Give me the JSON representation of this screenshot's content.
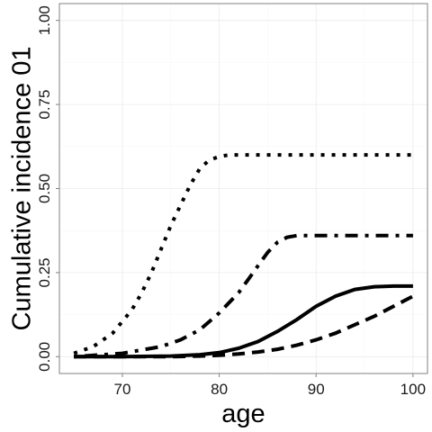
{
  "chart_data": {
    "type": "line",
    "title": "",
    "xlabel": "age",
    "ylabel": "Cumulative incidence 01",
    "xlim": [
      63.5,
      101.5
    ],
    "ylim": [
      -0.05,
      1.05
    ],
    "x_ticks": [
      70,
      80,
      90,
      100
    ],
    "y_ticks": [
      0.0,
      0.25,
      0.5,
      0.75,
      1.0
    ],
    "x_tick_labels": [
      "70",
      "80",
      "90",
      "100"
    ],
    "y_tick_labels": [
      "0.00",
      "0.25",
      "0.50",
      "0.75",
      "1.00"
    ],
    "grid": true,
    "legend": "none",
    "series": [
      {
        "linetype": "dotted",
        "x": [
          65,
          67,
          69,
          71,
          72,
          73,
          74,
          75,
          76,
          77,
          78,
          79,
          80,
          81,
          82,
          85,
          90,
          95,
          100
        ],
        "y": [
          0.01,
          0.03,
          0.07,
          0.14,
          0.19,
          0.25,
          0.32,
          0.39,
          0.45,
          0.51,
          0.56,
          0.585,
          0.595,
          0.6,
          0.6,
          0.6,
          0.6,
          0.6,
          0.6
        ]
      },
      {
        "linetype": "dotdash",
        "x": [
          65,
          70,
          74,
          76,
          78,
          80,
          82,
          83,
          84,
          85,
          86,
          87,
          88,
          89,
          90,
          92,
          95,
          100
        ],
        "y": [
          0.0,
          0.01,
          0.03,
          0.05,
          0.08,
          0.13,
          0.19,
          0.23,
          0.27,
          0.31,
          0.34,
          0.355,
          0.36,
          0.36,
          0.36,
          0.36,
          0.36,
          0.36
        ]
      },
      {
        "linetype": "solid",
        "x": [
          65,
          70,
          75,
          78,
          80,
          82,
          84,
          86,
          88,
          90,
          92,
          94,
          96,
          98,
          100
        ],
        "y": [
          0.0,
          0.0,
          0.002,
          0.006,
          0.012,
          0.025,
          0.045,
          0.075,
          0.11,
          0.15,
          0.18,
          0.2,
          0.208,
          0.21,
          0.21
        ]
      },
      {
        "linetype": "dashed",
        "x": [
          65,
          75,
          78,
          80,
          82,
          84,
          86,
          88,
          90,
          92,
          94,
          96,
          98,
          100
        ],
        "y": [
          0.0,
          0.0,
          0.002,
          0.004,
          0.008,
          0.014,
          0.022,
          0.034,
          0.05,
          0.07,
          0.095,
          0.12,
          0.15,
          0.18
        ]
      }
    ]
  }
}
